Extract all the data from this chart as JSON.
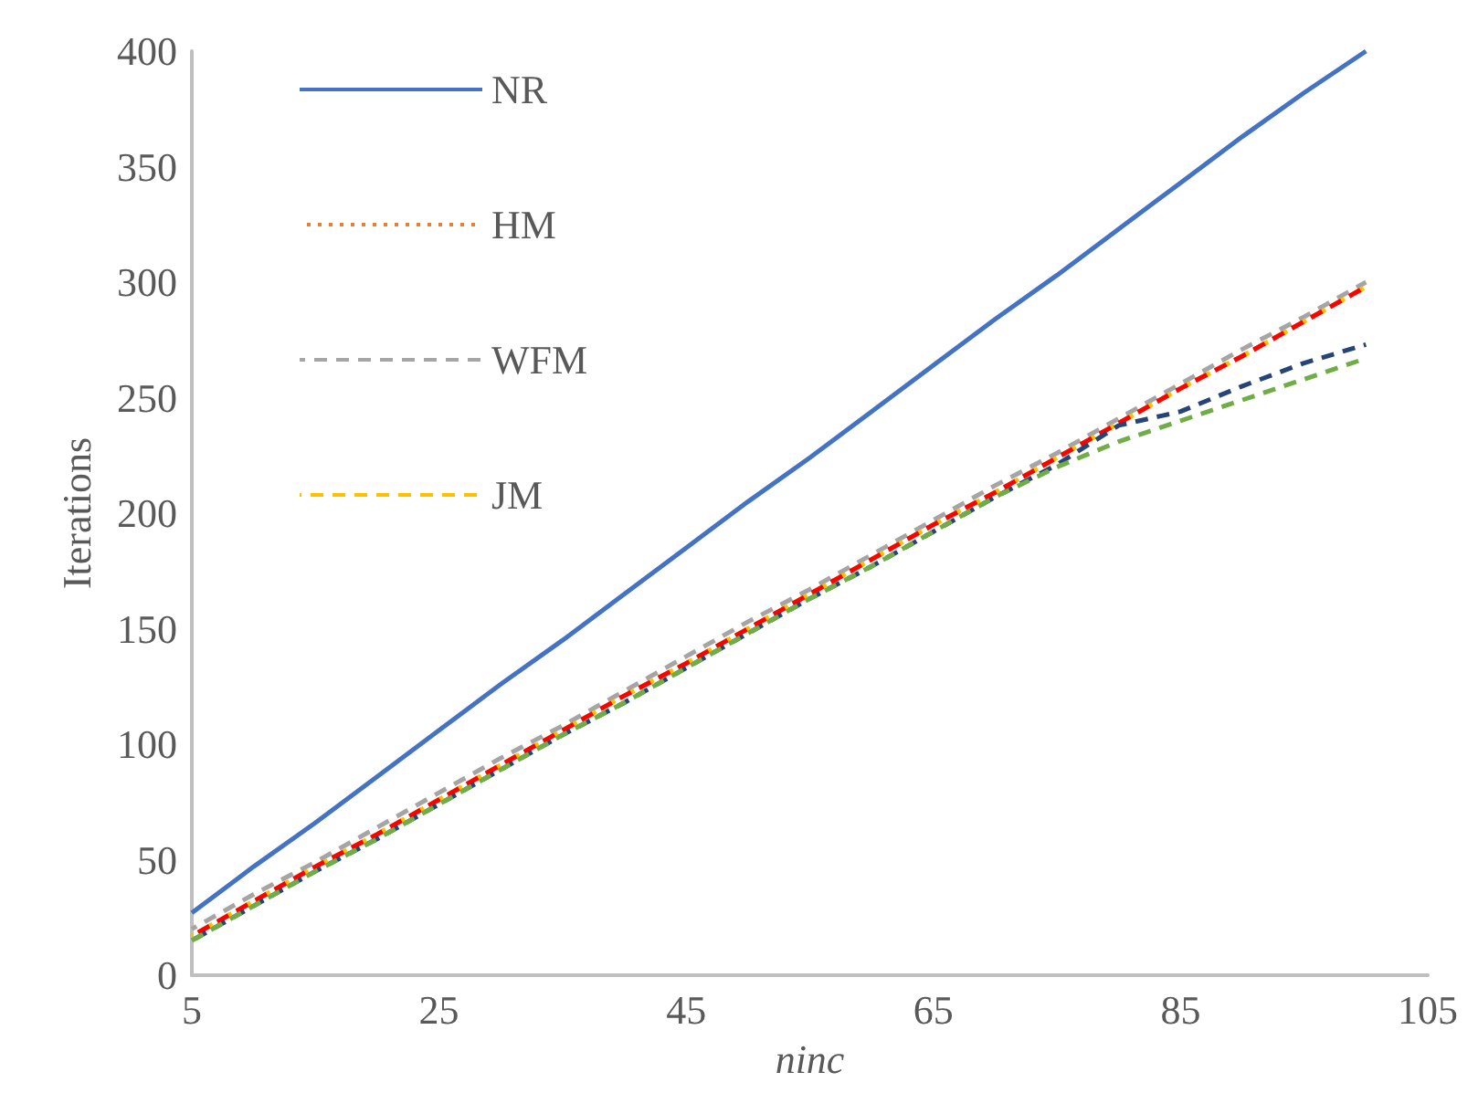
{
  "chart_data": {
    "type": "line",
    "xlabel": "ninc",
    "ylabel": "Iterations",
    "x": [
      5,
      10,
      15,
      20,
      25,
      30,
      35,
      40,
      45,
      50,
      55,
      60,
      65,
      70,
      75,
      80,
      85,
      90,
      95,
      100
    ],
    "xlim": [
      5,
      105
    ],
    "xticks": [
      5,
      25,
      45,
      65,
      85,
      105
    ],
    "ylim": [
      0,
      400
    ],
    "yticks": [
      0,
      50,
      100,
      150,
      200,
      250,
      300,
      350,
      400
    ],
    "grid": false,
    "legend": "top left",
    "marker": "none",
    "series": [
      {
        "name": "NR",
        "color": "#4472c4",
        "line_style": "solid",
        "values": [
          27,
          47,
          66,
          86,
          106,
          126,
          145,
          165,
          185,
          205,
          224,
          244,
          264,
          284,
          303,
          323,
          343,
          363,
          382,
          400
        ]
      },
      {
        "name": "HM",
        "color": "#ed7d31",
        "line_style": "dotted",
        "values": [
          17,
          32,
          47,
          61,
          76,
          91,
          106,
          121,
          135,
          150,
          165,
          180,
          195,
          209,
          224,
          239,
          254,
          268,
          283,
          298
        ]
      },
      {
        "name": "WFM",
        "color": "#a5a5a5",
        "line_style": "dashed",
        "values": [
          20,
          35,
          49,
          64,
          79,
          94,
          108,
          123,
          138,
          153,
          167,
          182,
          197,
          212,
          226,
          241,
          256,
          271,
          285,
          300
        ]
      },
      {
        "name": "JM",
        "color": "#ffc000",
        "line_style": "dashed",
        "values": [
          17,
          32,
          47,
          61,
          76,
          91,
          106,
          121,
          135,
          150,
          165,
          180,
          195,
          209,
          224,
          239,
          254,
          268,
          283,
          298
        ]
      },
      {
        "color": "#ff0000",
        "line_style": "dashed",
        "values": [
          17,
          32,
          47,
          61,
          76,
          91,
          106,
          121,
          135,
          150,
          165,
          180,
          195,
          209,
          224,
          239,
          254,
          268,
          283,
          298
        ]
      },
      {
        "color": "#264478",
        "line_style": "dashed",
        "values": [
          15,
          30,
          45,
          59,
          74,
          89,
          104,
          118,
          133,
          148,
          163,
          177,
          192,
          207,
          221,
          238,
          244,
          255,
          265,
          273
        ]
      },
      {
        "color": "#70ad47",
        "line_style": "dashed",
        "values": [
          15,
          30,
          45,
          59,
          74,
          89,
          104,
          118,
          133,
          148,
          163,
          177,
          192,
          207,
          220,
          231,
          240,
          249,
          258,
          267
        ]
      }
    ]
  }
}
